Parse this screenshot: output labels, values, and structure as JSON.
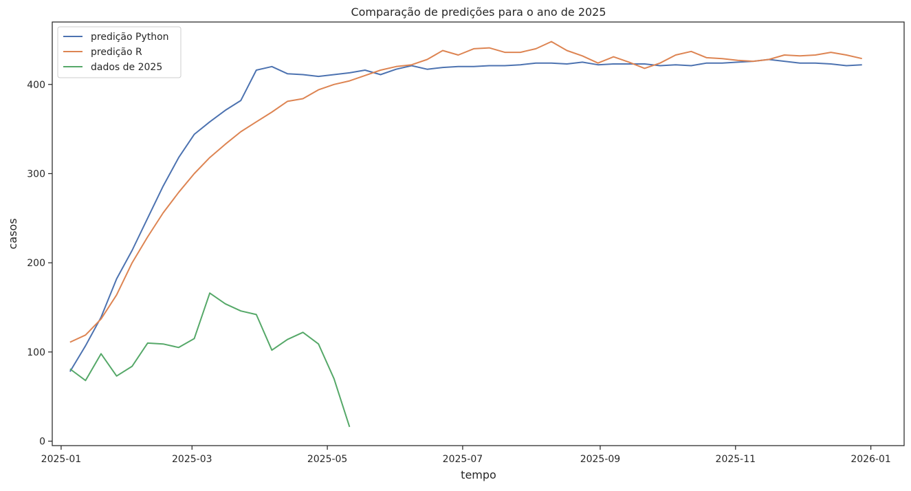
{
  "chart_data": {
    "type": "line",
    "title": "Comparação de predições para o ano de 2025",
    "xlabel": "tempo",
    "ylabel": "casos",
    "x_axis_type": "date",
    "xlim": [
      "2024-12-28",
      "2026-01-16"
    ],
    "ylim": [
      -5,
      470
    ],
    "x_ticks": [
      "2025-01-01",
      "2025-03-01",
      "2025-05-01",
      "2025-07-01",
      "2025-09-01",
      "2025-11-01",
      "2026-01-01"
    ],
    "x_tick_labels": [
      "2025-01",
      "2025-03",
      "2025-05",
      "2025-07",
      "2025-09",
      "2025-11",
      "2026-01"
    ],
    "y_ticks": [
      0,
      100,
      200,
      300,
      400
    ],
    "y_tick_labels": [
      "0",
      "100",
      "200",
      "300",
      "400"
    ],
    "grid": false,
    "legend_position": "top-left",
    "series": [
      {
        "name": "predição Python",
        "color": "#4c72b0",
        "x": [
          "2025-01-05",
          "2025-01-12",
          "2025-01-19",
          "2025-01-26",
          "2025-02-02",
          "2025-02-09",
          "2025-02-16",
          "2025-02-23",
          "2025-03-02",
          "2025-03-09",
          "2025-03-16",
          "2025-03-23",
          "2025-03-30",
          "2025-04-06",
          "2025-04-13",
          "2025-04-20",
          "2025-04-27",
          "2025-05-04",
          "2025-05-11",
          "2025-05-18",
          "2025-05-25",
          "2025-06-01",
          "2025-06-08",
          "2025-06-15",
          "2025-06-22",
          "2025-06-29",
          "2025-07-06",
          "2025-07-13",
          "2025-07-20",
          "2025-07-27",
          "2025-08-03",
          "2025-08-10",
          "2025-08-17",
          "2025-08-24",
          "2025-08-31",
          "2025-09-07",
          "2025-09-14",
          "2025-09-21",
          "2025-09-28",
          "2025-10-05",
          "2025-10-12",
          "2025-10-19",
          "2025-10-26",
          "2025-11-02",
          "2025-11-09",
          "2025-11-16",
          "2025-11-23",
          "2025-11-30",
          "2025-12-07",
          "2025-12-14",
          "2025-12-21",
          "2025-12-28"
        ],
        "y": [
          78,
          107,
          139,
          182,
          214,
          250,
          286,
          318,
          344,
          358,
          371,
          382,
          416,
          420,
          412,
          411,
          409,
          411,
          413,
          416,
          411,
          417,
          421,
          417,
          419,
          420,
          420,
          421,
          421,
          422,
          424,
          424,
          423,
          425,
          422,
          423,
          423,
          423,
          421,
          422,
          421,
          424,
          424,
          425,
          426,
          428,
          426,
          424,
          424,
          423,
          421,
          422
        ]
      },
      {
        "name": "predição R",
        "color": "#dd8452",
        "x": [
          "2025-01-05",
          "2025-01-12",
          "2025-01-19",
          "2025-01-26",
          "2025-02-02",
          "2025-02-09",
          "2025-02-16",
          "2025-02-23",
          "2025-03-02",
          "2025-03-09",
          "2025-03-16",
          "2025-03-23",
          "2025-03-30",
          "2025-04-06",
          "2025-04-13",
          "2025-04-20",
          "2025-04-27",
          "2025-05-04",
          "2025-05-11",
          "2025-05-18",
          "2025-05-25",
          "2025-06-01",
          "2025-06-08",
          "2025-06-15",
          "2025-06-22",
          "2025-06-29",
          "2025-07-06",
          "2025-07-13",
          "2025-07-20",
          "2025-07-27",
          "2025-08-03",
          "2025-08-10",
          "2025-08-17",
          "2025-08-24",
          "2025-08-31",
          "2025-09-07",
          "2025-09-14",
          "2025-09-21",
          "2025-09-28",
          "2025-10-05",
          "2025-10-12",
          "2025-10-19",
          "2025-10-26",
          "2025-11-02",
          "2025-11-09",
          "2025-11-16",
          "2025-11-23",
          "2025-11-30",
          "2025-12-07",
          "2025-12-14",
          "2025-12-21",
          "2025-12-28"
        ],
        "y": [
          111,
          119,
          137,
          164,
          200,
          229,
          256,
          279,
          300,
          318,
          333,
          347,
          358,
          369,
          381,
          384,
          394,
          400,
          404,
          410,
          416,
          420,
          422,
          428,
          438,
          433,
          440,
          441,
          436,
          436,
          440,
          448,
          438,
          432,
          424,
          431,
          425,
          418,
          424,
          433,
          437,
          430,
          429,
          427,
          426,
          428,
          433,
          432,
          433,
          436,
          433,
          429
        ]
      },
      {
        "name": "dados de 2025",
        "color": "#55a868",
        "x": [
          "2025-01-05",
          "2025-01-12",
          "2025-01-19",
          "2025-01-26",
          "2025-02-02",
          "2025-02-09",
          "2025-02-16",
          "2025-02-23",
          "2025-03-02",
          "2025-03-09",
          "2025-03-16",
          "2025-03-23",
          "2025-03-30",
          "2025-04-06",
          "2025-04-13",
          "2025-04-20",
          "2025-04-27",
          "2025-05-04",
          "2025-05-11"
        ],
        "y": [
          81,
          68,
          98,
          73,
          84,
          110,
          109,
          105,
          115,
          166,
          154,
          146,
          142,
          102,
          114,
          122,
          109,
          70,
          16
        ]
      }
    ]
  }
}
